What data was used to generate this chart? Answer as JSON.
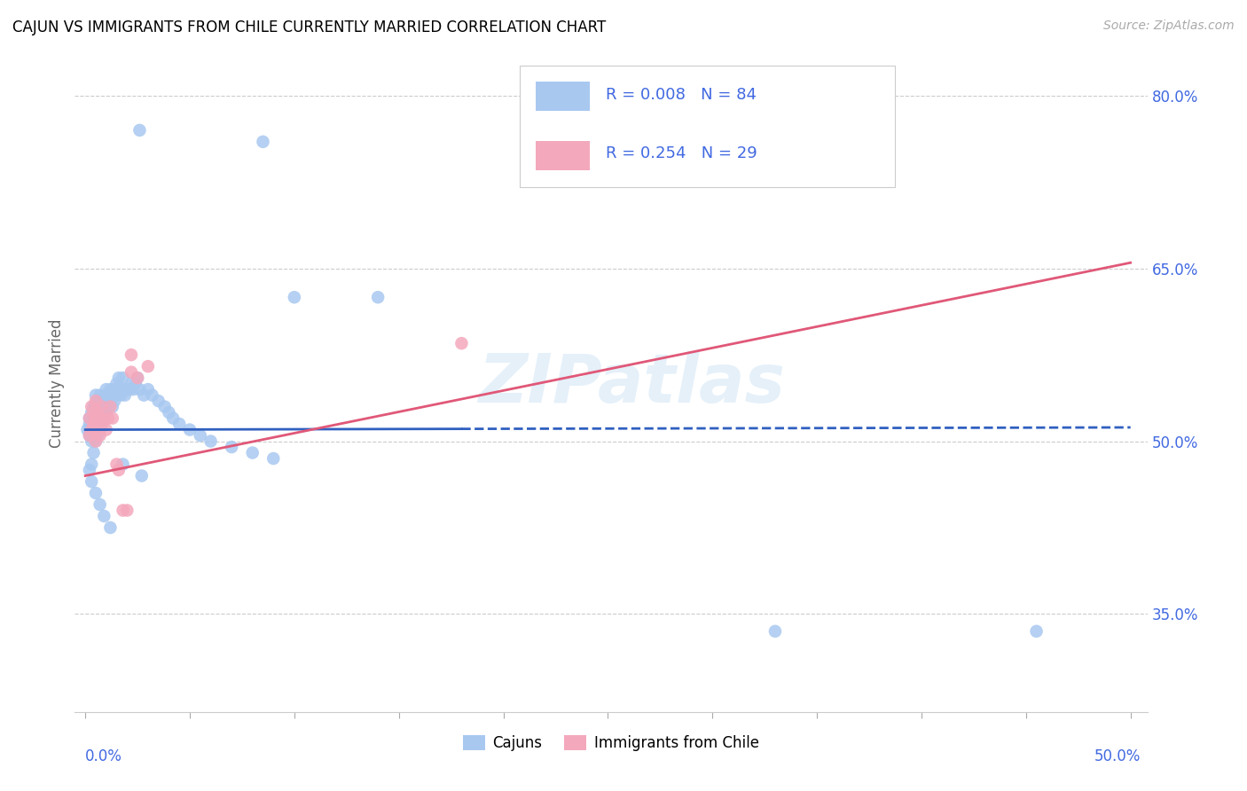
{
  "title": "CAJUN VS IMMIGRANTS FROM CHILE CURRENTLY MARRIED CORRELATION CHART",
  "source": "Source: ZipAtlas.com",
  "ylabel": "Currently Married",
  "yticks": [
    0.35,
    0.5,
    0.65,
    0.8
  ],
  "ytick_labels": [
    "35.0%",
    "50.0%",
    "65.0%",
    "80.0%"
  ],
  "xlim": [
    0.0,
    0.5
  ],
  "ylim": [
    0.265,
    0.835
  ],
  "blue_color": "#a8c8f0",
  "pink_color": "#f4a8bc",
  "blue_line_color": "#3060c0",
  "pink_line_color": "#e05878",
  "watermark": "ZIPatlas",
  "cajun_trend_x0": 0.0,
  "cajun_trend_x1": 0.5,
  "cajun_trend_y0": 0.51,
  "cajun_trend_y1": 0.512,
  "chile_trend_x0": 0.0,
  "chile_trend_x1": 0.5,
  "chile_trend_y0": 0.47,
  "chile_trend_y1": 0.655,
  "cajun_x": [
    0.001,
    0.002,
    0.002,
    0.002,
    0.003,
    0.003,
    0.003,
    0.003,
    0.004,
    0.004,
    0.004,
    0.004,
    0.005,
    0.005,
    0.005,
    0.005,
    0.005,
    0.006,
    0.006,
    0.006,
    0.006,
    0.007,
    0.007,
    0.007,
    0.007,
    0.008,
    0.008,
    0.008,
    0.009,
    0.009,
    0.01,
    0.01,
    0.01,
    0.011,
    0.011,
    0.012,
    0.012,
    0.013,
    0.013,
    0.014,
    0.014,
    0.015,
    0.015,
    0.016,
    0.016,
    0.017,
    0.018,
    0.018,
    0.019,
    0.02,
    0.021,
    0.022,
    0.023,
    0.024,
    0.025,
    0.026,
    0.028,
    0.03,
    0.032,
    0.035,
    0.038,
    0.04,
    0.042,
    0.045,
    0.05,
    0.055,
    0.06,
    0.07,
    0.08,
    0.09,
    0.002,
    0.003,
    0.005,
    0.007,
    0.009,
    0.012,
    0.018,
    0.027,
    0.33,
    0.455,
    0.026,
    0.085,
    0.1,
    0.14
  ],
  "cajun_y": [
    0.51,
    0.505,
    0.515,
    0.52,
    0.48,
    0.5,
    0.515,
    0.525,
    0.49,
    0.51,
    0.52,
    0.53,
    0.5,
    0.51,
    0.52,
    0.53,
    0.54,
    0.505,
    0.515,
    0.525,
    0.535,
    0.51,
    0.52,
    0.53,
    0.54,
    0.515,
    0.525,
    0.535,
    0.52,
    0.53,
    0.525,
    0.535,
    0.545,
    0.53,
    0.54,
    0.535,
    0.545,
    0.53,
    0.54,
    0.535,
    0.545,
    0.54,
    0.55,
    0.545,
    0.555,
    0.54,
    0.545,
    0.555,
    0.54,
    0.545,
    0.545,
    0.55,
    0.545,
    0.55,
    0.555,
    0.545,
    0.54,
    0.545,
    0.54,
    0.535,
    0.53,
    0.525,
    0.52,
    0.515,
    0.51,
    0.505,
    0.5,
    0.495,
    0.49,
    0.485,
    0.475,
    0.465,
    0.455,
    0.445,
    0.435,
    0.425,
    0.48,
    0.47,
    0.335,
    0.335,
    0.77,
    0.76,
    0.625,
    0.625
  ],
  "chile_x": [
    0.002,
    0.002,
    0.003,
    0.003,
    0.004,
    0.004,
    0.005,
    0.005,
    0.005,
    0.006,
    0.006,
    0.007,
    0.007,
    0.008,
    0.008,
    0.009,
    0.01,
    0.011,
    0.012,
    0.013,
    0.015,
    0.016,
    0.018,
    0.02,
    0.022,
    0.022,
    0.025,
    0.03,
    0.18
  ],
  "chile_y": [
    0.505,
    0.52,
    0.51,
    0.53,
    0.515,
    0.525,
    0.5,
    0.52,
    0.535,
    0.51,
    0.525,
    0.505,
    0.52,
    0.515,
    0.53,
    0.52,
    0.51,
    0.52,
    0.53,
    0.52,
    0.48,
    0.475,
    0.44,
    0.44,
    0.56,
    0.575,
    0.555,
    0.565,
    0.585
  ]
}
